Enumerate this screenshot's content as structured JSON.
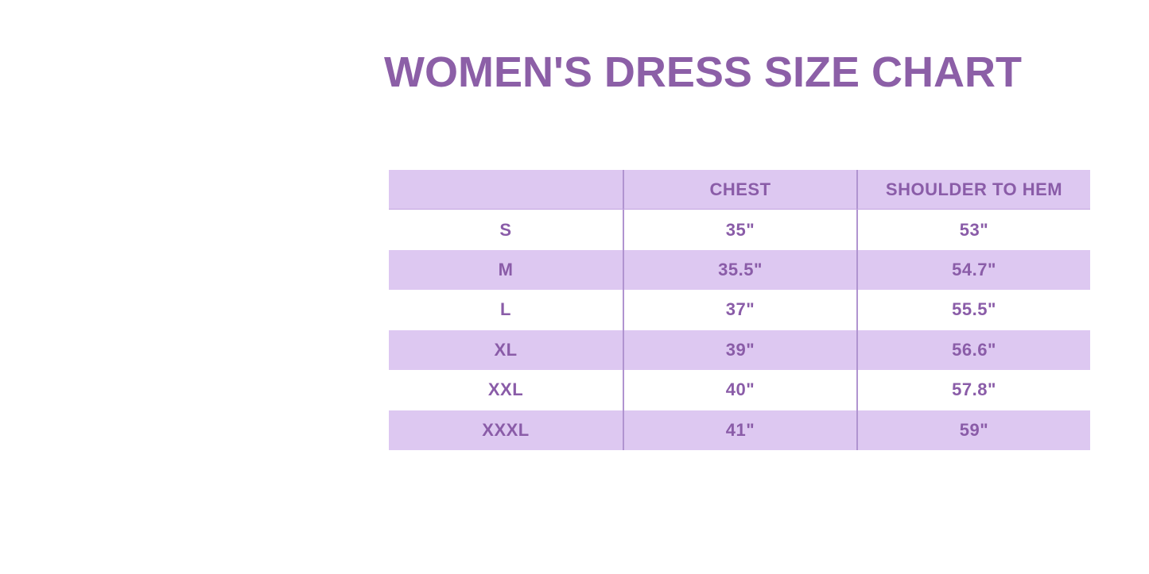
{
  "title": {
    "text": "WOMEN'S DRESS SIZE CHART"
  },
  "chart_data": {
    "type": "table",
    "title": "WOMEN'S DRESS SIZE CHART",
    "columns": [
      "",
      "CHEST",
      "SHOULDER TO HEM"
    ],
    "row_labels": [
      "S",
      "M",
      "L",
      "XL",
      "XXL",
      "XXXL"
    ],
    "rows": [
      [
        "S",
        "35\"",
        "53\""
      ],
      [
        "M",
        "35.5\"",
        "54.7\""
      ],
      [
        "L",
        "37\"",
        "55.5\""
      ],
      [
        "XL",
        "39\"",
        "56.6\""
      ],
      [
        "XXL",
        "40\"",
        "57.8\""
      ],
      [
        "XXXL",
        "41\"",
        "59\""
      ]
    ],
    "chest_inches": [
      35,
      35.5,
      37,
      39,
      40,
      41
    ],
    "shoulder_to_hem_inches": [
      53,
      54.7,
      55.5,
      56.6,
      57.8,
      59
    ],
    "layout": "alternating row stripes lavender/white, header row lavender, two vertical column dividers, no outer border"
  },
  "colors": {
    "page_background": "#ffffff",
    "title_text": "#8c5fa7",
    "table_text": "#8a5ca8",
    "row_lavender": "#ddc8f1",
    "row_white": "#ffffff",
    "divider": "#b094d0",
    "header_rule": "#c3a5e0"
  }
}
